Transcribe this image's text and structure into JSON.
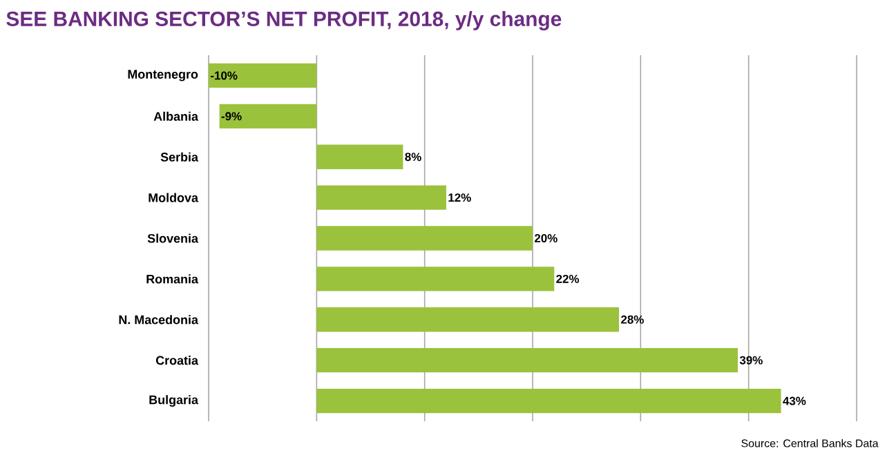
{
  "chart_data": {
    "type": "bar",
    "orientation": "horizontal",
    "title": "SEE BANKING SECTOR’S NET PROFIT, 2018, y/y change",
    "categories": [
      "Montenegro",
      "Albania",
      "Serbia",
      "Moldova",
      "Slovenia",
      "Romania",
      "N. Macedonia",
      "Croatia",
      "Bulgaria"
    ],
    "values": [
      -10,
      -9,
      8,
      12,
      20,
      22,
      28,
      39,
      43
    ],
    "value_labels": [
      "-10%",
      "-9%",
      "8%",
      "12%",
      "20%",
      "22%",
      "28%",
      "39%",
      "43%"
    ],
    "color": "#9bc23c",
    "xlim": [
      -10,
      50
    ],
    "xticks": [
      {
        "value": -10,
        "label": null
      },
      {
        "value": 0,
        "label": null
      },
      {
        "value": 10,
        "label": null
      },
      {
        "value": 20,
        "label": null
      },
      {
        "value": 30,
        "label": null
      },
      {
        "value": 40,
        "label": null
      },
      {
        "value": 50,
        "label": null
      }
    ],
    "grid": "x",
    "tick_labels": "y",
    "annotations": [
      "Source: Central Banks Data"
    ]
  }
}
